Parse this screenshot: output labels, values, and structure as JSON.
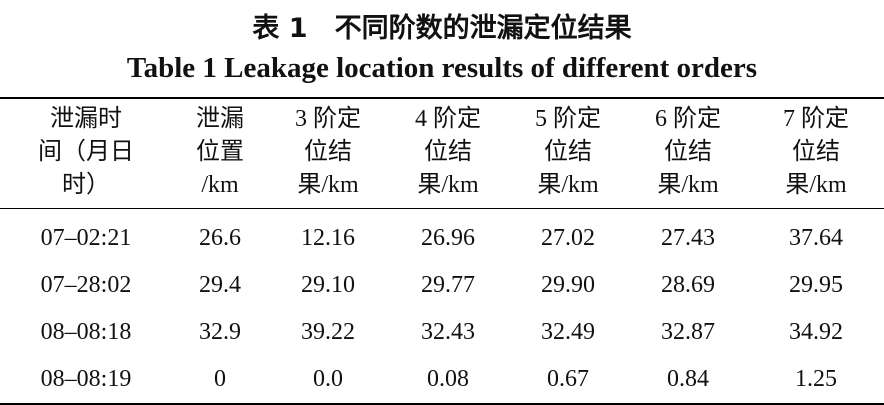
{
  "title_cn": "表 1　不同阶数的泄漏定位结果",
  "title_en": "Table 1 Leakage location results of different orders",
  "table": {
    "header": [
      [
        "泄漏时",
        "间（月日",
        "时）"
      ],
      [
        "泄漏",
        "位置",
        "/km"
      ],
      [
        "3 阶定",
        "位结",
        "果/km"
      ],
      [
        "4 阶定",
        "位结",
        "果/km"
      ],
      [
        "5 阶定",
        "位结",
        "果/km"
      ],
      [
        "6 阶定",
        "位结",
        "果/km"
      ],
      [
        "7 阶定",
        "位结",
        "果/km"
      ]
    ],
    "rows": [
      [
        "07–02:21",
        "26.6",
        "12.16",
        "26.96",
        "27.02",
        "27.43",
        "37.64"
      ],
      [
        "07–28:02",
        "29.4",
        "29.10",
        "29.77",
        "29.90",
        "28.69",
        "29.95"
      ],
      [
        "08–08:18",
        "32.9",
        "39.22",
        "32.43",
        "32.49",
        "32.87",
        "34.92"
      ],
      [
        "08–08:19",
        "0",
        "0.0",
        "0.08",
        "0.67",
        "0.84",
        "1.25"
      ]
    ]
  }
}
